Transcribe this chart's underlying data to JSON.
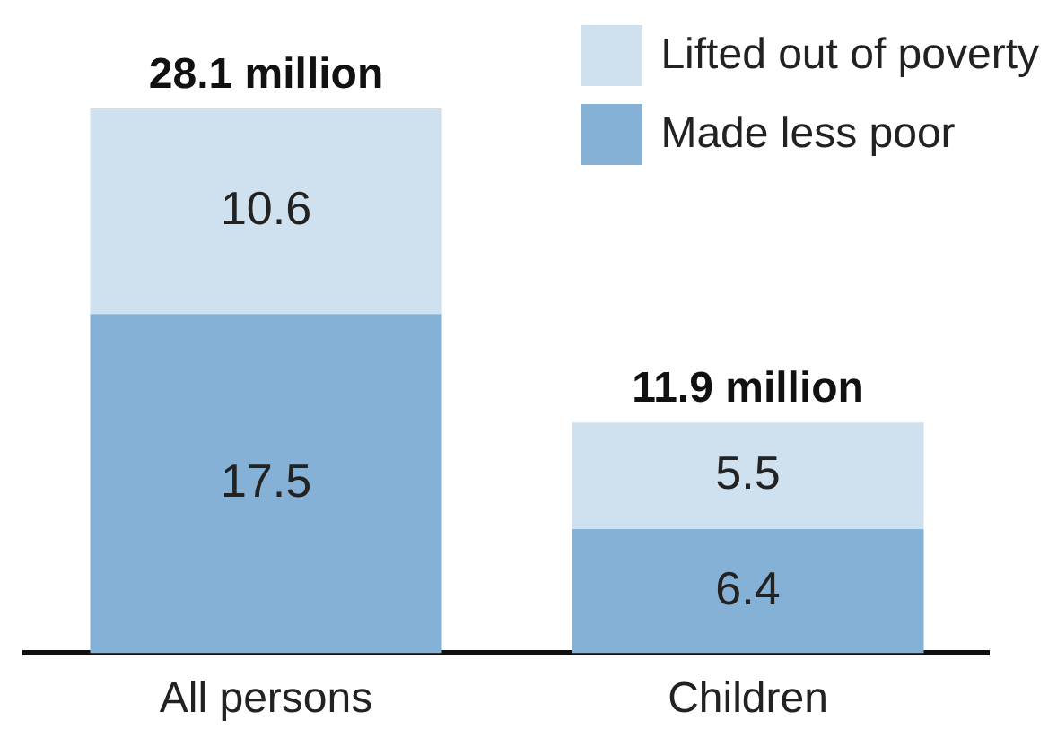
{
  "chart_data": {
    "type": "bar",
    "stacked": true,
    "categories": [
      "All persons",
      "Children"
    ],
    "series": [
      {
        "name": "Made less poor",
        "color": "#86b1d6",
        "values": [
          17.5,
          6.4
        ]
      },
      {
        "name": "Lifted out of poverty",
        "color": "#cfe0ee",
        "values": [
          10.6,
          5.5
        ]
      }
    ],
    "data_labels": true,
    "totals": [
      "28.1 million",
      "11.9 million"
    ],
    "legend": "top right"
  }
}
